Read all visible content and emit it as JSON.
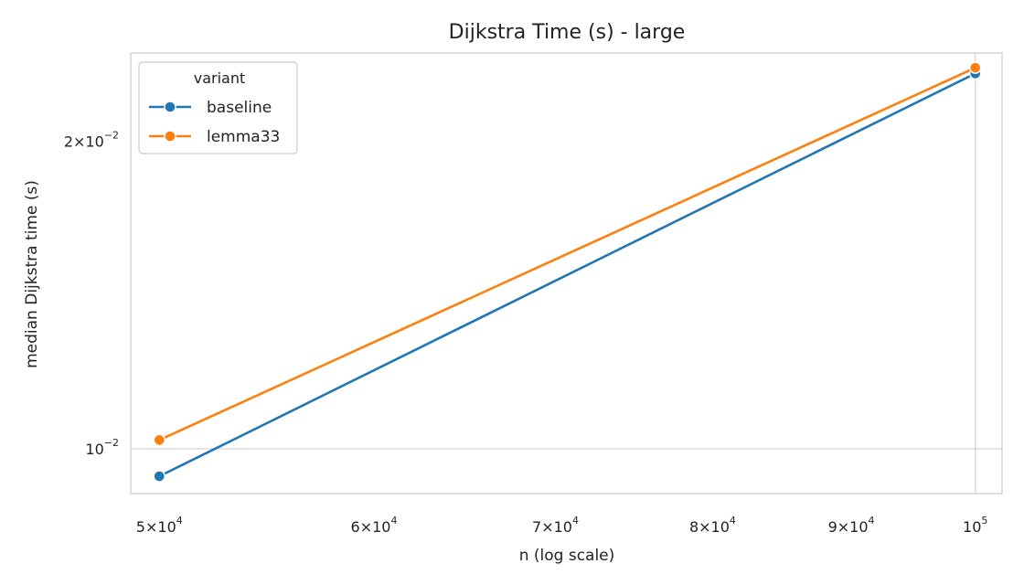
{
  "chart_data": {
    "type": "line",
    "title": "Dijkstra Time (s) - large",
    "xlabel": "n (log scale)",
    "ylabel": "median Dijkstra time (s)",
    "xscale": "log",
    "yscale": "log",
    "x": [
      50000,
      100000
    ],
    "xlim": [
      48800,
      102300
    ],
    "ylim": [
      0.00904,
      0.0244
    ],
    "x_ticks": [
      {
        "value": 50000,
        "mant": "5",
        "exp": "4"
      },
      {
        "value": 60000,
        "mant": "6",
        "exp": "4"
      },
      {
        "value": 70000,
        "mant": "7",
        "exp": "4"
      },
      {
        "value": 80000,
        "mant": "8",
        "exp": "4"
      },
      {
        "value": 90000,
        "mant": "9",
        "exp": "4"
      },
      {
        "value": 100000,
        "mant": "",
        "exp": "5"
      }
    ],
    "y_ticks": [
      {
        "value": 0.01,
        "mant": "",
        "exp": "−2"
      },
      {
        "value": 0.02,
        "mant": "2",
        "exp": "−2"
      }
    ],
    "grid": true,
    "legend": {
      "title": "variant",
      "placement": "top-left"
    },
    "series": [
      {
        "name": "baseline",
        "color": "#1f77b4",
        "values": [
          0.0094,
          0.0233
        ]
      },
      {
        "name": "lemma33",
        "color": "#ff7f0e",
        "values": [
          0.0102,
          0.0236
        ]
      }
    ]
  }
}
